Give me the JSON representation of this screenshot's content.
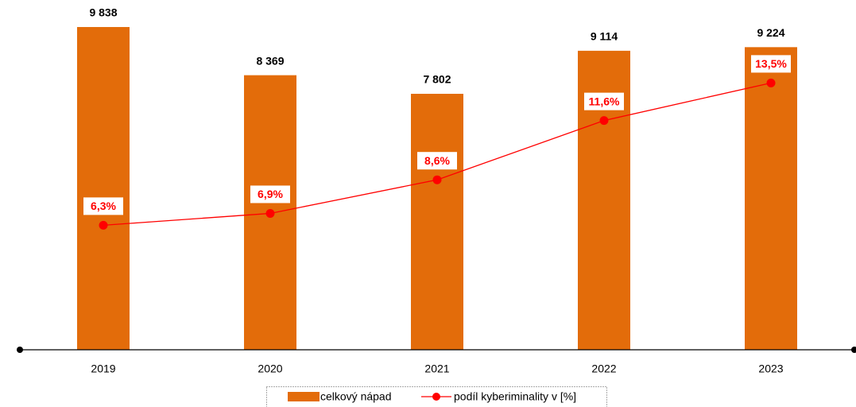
{
  "chart_data": {
    "type": "bar",
    "categories": [
      "2019",
      "2020",
      "2021",
      "2022",
      "2023"
    ],
    "ylim": [
      0,
      10000
    ],
    "y2lim": [
      0,
      16.6
    ],
    "legend": "bottom",
    "series": [
      {
        "name": "celkový nápad",
        "type": "bar",
        "color": "#e36c0a",
        "values": [
          9838,
          8369,
          7802,
          9114,
          9224
        ],
        "value_labels": [
          "9 838",
          "8 369",
          "7 802",
          "9 114",
          "9 224"
        ]
      },
      {
        "name": "podíl kyberiminality v [%]",
        "type": "line",
        "axis": "y2",
        "color": "#ff0000",
        "values": [
          6.3,
          6.9,
          8.6,
          11.6,
          13.5
        ],
        "value_labels": [
          "6,3%",
          "6,9%",
          "8,6%",
          "11,6%",
          "13,5%"
        ]
      }
    ]
  }
}
